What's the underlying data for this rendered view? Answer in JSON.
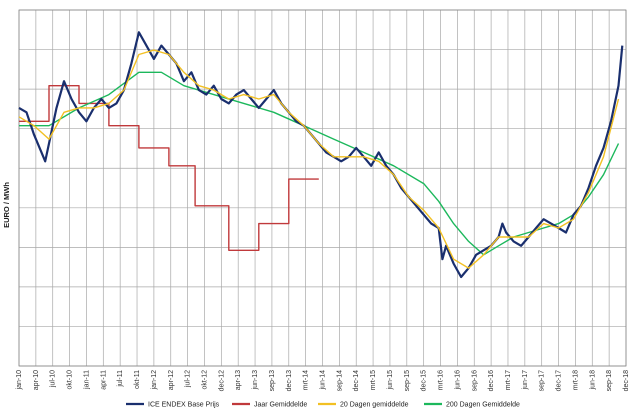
{
  "chart_data": {
    "type": "line",
    "title": "",
    "ylabel": "EURO / MWh",
    "xlabel": "",
    "x_ticks": [
      "jan-10",
      "apr-10",
      "jul-10",
      "okt-10",
      "jan-11",
      "apr-11",
      "jul-11",
      "okt-11",
      "jan-12",
      "apr-12",
      "jul-12",
      "okt-12",
      "dec-12",
      "apr-13",
      "jun-13",
      "sep-13",
      "dec-13",
      "mrt-14",
      "jun-14",
      "sep-14",
      "dec-14",
      "mrt-15",
      "jun-15",
      "sep-15",
      "dec-15",
      "mrt-16",
      "jun-16",
      "sep-16",
      "dec-16",
      "mrt-17",
      "jun-17",
      "sep-17",
      "dec-17",
      "mrt-18",
      "jun-18",
      "sep-18",
      "dec-18"
    ],
    "ylim": [
      0,
      80
    ],
    "y_grid_step": 8.888,
    "y_tick_labels_visible": false,
    "grid": true,
    "legend_position": "bottom",
    "series": [
      {
        "name": "ICE ENDEX Base Prijs",
        "color": "#1a2f6e",
        "points": [
          [
            0,
            58
          ],
          [
            1,
            57
          ],
          [
            2,
            52
          ],
          [
            3,
            48
          ],
          [
            3.5,
            46
          ],
          [
            4,
            50
          ],
          [
            5,
            58
          ],
          [
            6,
            64
          ],
          [
            7,
            60
          ],
          [
            8,
            57
          ],
          [
            9,
            55
          ],
          [
            10,
            58
          ],
          [
            11,
            60
          ],
          [
            12,
            58
          ],
          [
            13,
            59
          ],
          [
            14,
            62
          ],
          [
            15,
            68
          ],
          [
            16,
            75
          ],
          [
            17,
            72
          ],
          [
            18,
            69
          ],
          [
            19,
            72
          ],
          [
            20,
            70
          ],
          [
            21,
            68
          ],
          [
            22,
            64
          ],
          [
            23,
            66
          ],
          [
            24,
            62
          ],
          [
            25,
            61
          ],
          [
            26,
            63
          ],
          [
            27,
            60
          ],
          [
            28,
            59
          ],
          [
            29,
            61
          ],
          [
            30,
            62
          ],
          [
            31,
            60
          ],
          [
            32,
            58
          ],
          [
            33,
            60
          ],
          [
            34,
            62
          ],
          [
            35,
            59
          ],
          [
            36,
            57
          ],
          [
            37,
            55
          ],
          [
            38,
            54
          ],
          [
            39,
            52
          ],
          [
            40,
            50
          ],
          [
            41,
            48
          ],
          [
            42,
            47
          ],
          [
            43,
            46
          ],
          [
            44,
            47
          ],
          [
            45,
            49
          ],
          [
            46,
            47
          ],
          [
            47,
            45
          ],
          [
            48,
            48
          ],
          [
            49,
            45
          ],
          [
            50,
            43
          ],
          [
            51,
            40
          ],
          [
            52,
            38
          ],
          [
            53,
            36
          ],
          [
            54,
            34
          ],
          [
            55,
            32
          ],
          [
            56,
            31
          ],
          [
            56.5,
            24
          ],
          [
            57,
            27
          ],
          [
            58,
            23
          ],
          [
            59,
            20
          ],
          [
            60,
            22
          ],
          [
            61,
            25
          ],
          [
            62,
            26
          ],
          [
            63,
            27
          ],
          [
            64,
            29
          ],
          [
            64.5,
            32
          ],
          [
            65,
            30
          ],
          [
            66,
            28
          ],
          [
            67,
            27
          ],
          [
            68,
            29
          ],
          [
            69,
            31
          ],
          [
            70,
            33
          ],
          [
            71,
            32
          ],
          [
            72,
            31
          ],
          [
            73,
            30
          ],
          [
            74,
            34
          ],
          [
            75,
            36
          ],
          [
            76,
            40
          ],
          [
            77,
            45
          ],
          [
            78,
            49
          ],
          [
            79,
            55
          ],
          [
            80,
            63
          ],
          [
            80.5,
            72
          ]
        ]
      },
      {
        "name": "Jaar Gemiddelde",
        "color": "#c0393b",
        "points": [
          [
            0,
            55
          ],
          [
            4,
            55
          ],
          [
            4,
            63
          ],
          [
            8,
            63
          ],
          [
            8,
            59
          ],
          [
            12,
            59
          ],
          [
            12,
            54
          ],
          [
            16,
            54
          ],
          [
            16,
            49
          ],
          [
            20,
            49
          ],
          [
            20,
            45
          ],
          [
            23.5,
            45
          ],
          [
            23.5,
            36
          ],
          [
            28,
            36
          ],
          [
            28,
            26
          ],
          [
            32,
            26
          ],
          [
            32,
            32
          ],
          [
            36,
            32
          ],
          [
            36,
            42
          ],
          [
            40,
            42
          ]
        ]
      },
      {
        "name": "20 Dagen gemiddelde",
        "color": "#f2c023",
        "points": [
          [
            0,
            56
          ],
          [
            2,
            54
          ],
          [
            4,
            51
          ],
          [
            6,
            57
          ],
          [
            8,
            58
          ],
          [
            10,
            58
          ],
          [
            12,
            59
          ],
          [
            14,
            62
          ],
          [
            16,
            70
          ],
          [
            18,
            71
          ],
          [
            20,
            70
          ],
          [
            22,
            66
          ],
          [
            24,
            63
          ],
          [
            26,
            62
          ],
          [
            28,
            60
          ],
          [
            30,
            61
          ],
          [
            32,
            60
          ],
          [
            34,
            61
          ],
          [
            36,
            57
          ],
          [
            38,
            54
          ],
          [
            40,
            50
          ],
          [
            42,
            47
          ],
          [
            44,
            47
          ],
          [
            46,
            47
          ],
          [
            48,
            46
          ],
          [
            50,
            43
          ],
          [
            52,
            38
          ],
          [
            54,
            35
          ],
          [
            56,
            31
          ],
          [
            58,
            24
          ],
          [
            60,
            22
          ],
          [
            62,
            25
          ],
          [
            64,
            29
          ],
          [
            66,
            29
          ],
          [
            68,
            29
          ],
          [
            70,
            32
          ],
          [
            72,
            31
          ],
          [
            74,
            33
          ],
          [
            76,
            39
          ],
          [
            78,
            47
          ],
          [
            80,
            60
          ]
        ]
      },
      {
        "name": "200 Dagen Gemiddelde",
        "color": "#1cb85c",
        "points": [
          [
            0,
            54
          ],
          [
            4,
            54
          ],
          [
            8,
            58
          ],
          [
            12,
            61
          ],
          [
            16,
            66
          ],
          [
            19,
            66
          ],
          [
            22,
            63
          ],
          [
            26,
            61
          ],
          [
            30,
            59
          ],
          [
            34,
            57
          ],
          [
            38,
            54
          ],
          [
            42,
            51
          ],
          [
            46,
            48
          ],
          [
            50,
            45
          ],
          [
            54,
            41
          ],
          [
            56,
            37
          ],
          [
            58,
            32
          ],
          [
            60,
            28
          ],
          [
            62,
            25
          ],
          [
            64,
            27
          ],
          [
            66,
            29
          ],
          [
            68,
            30
          ],
          [
            70,
            31
          ],
          [
            72,
            32
          ],
          [
            74,
            34
          ],
          [
            76,
            38
          ],
          [
            78,
            43
          ],
          [
            80,
            50
          ]
        ]
      }
    ]
  }
}
